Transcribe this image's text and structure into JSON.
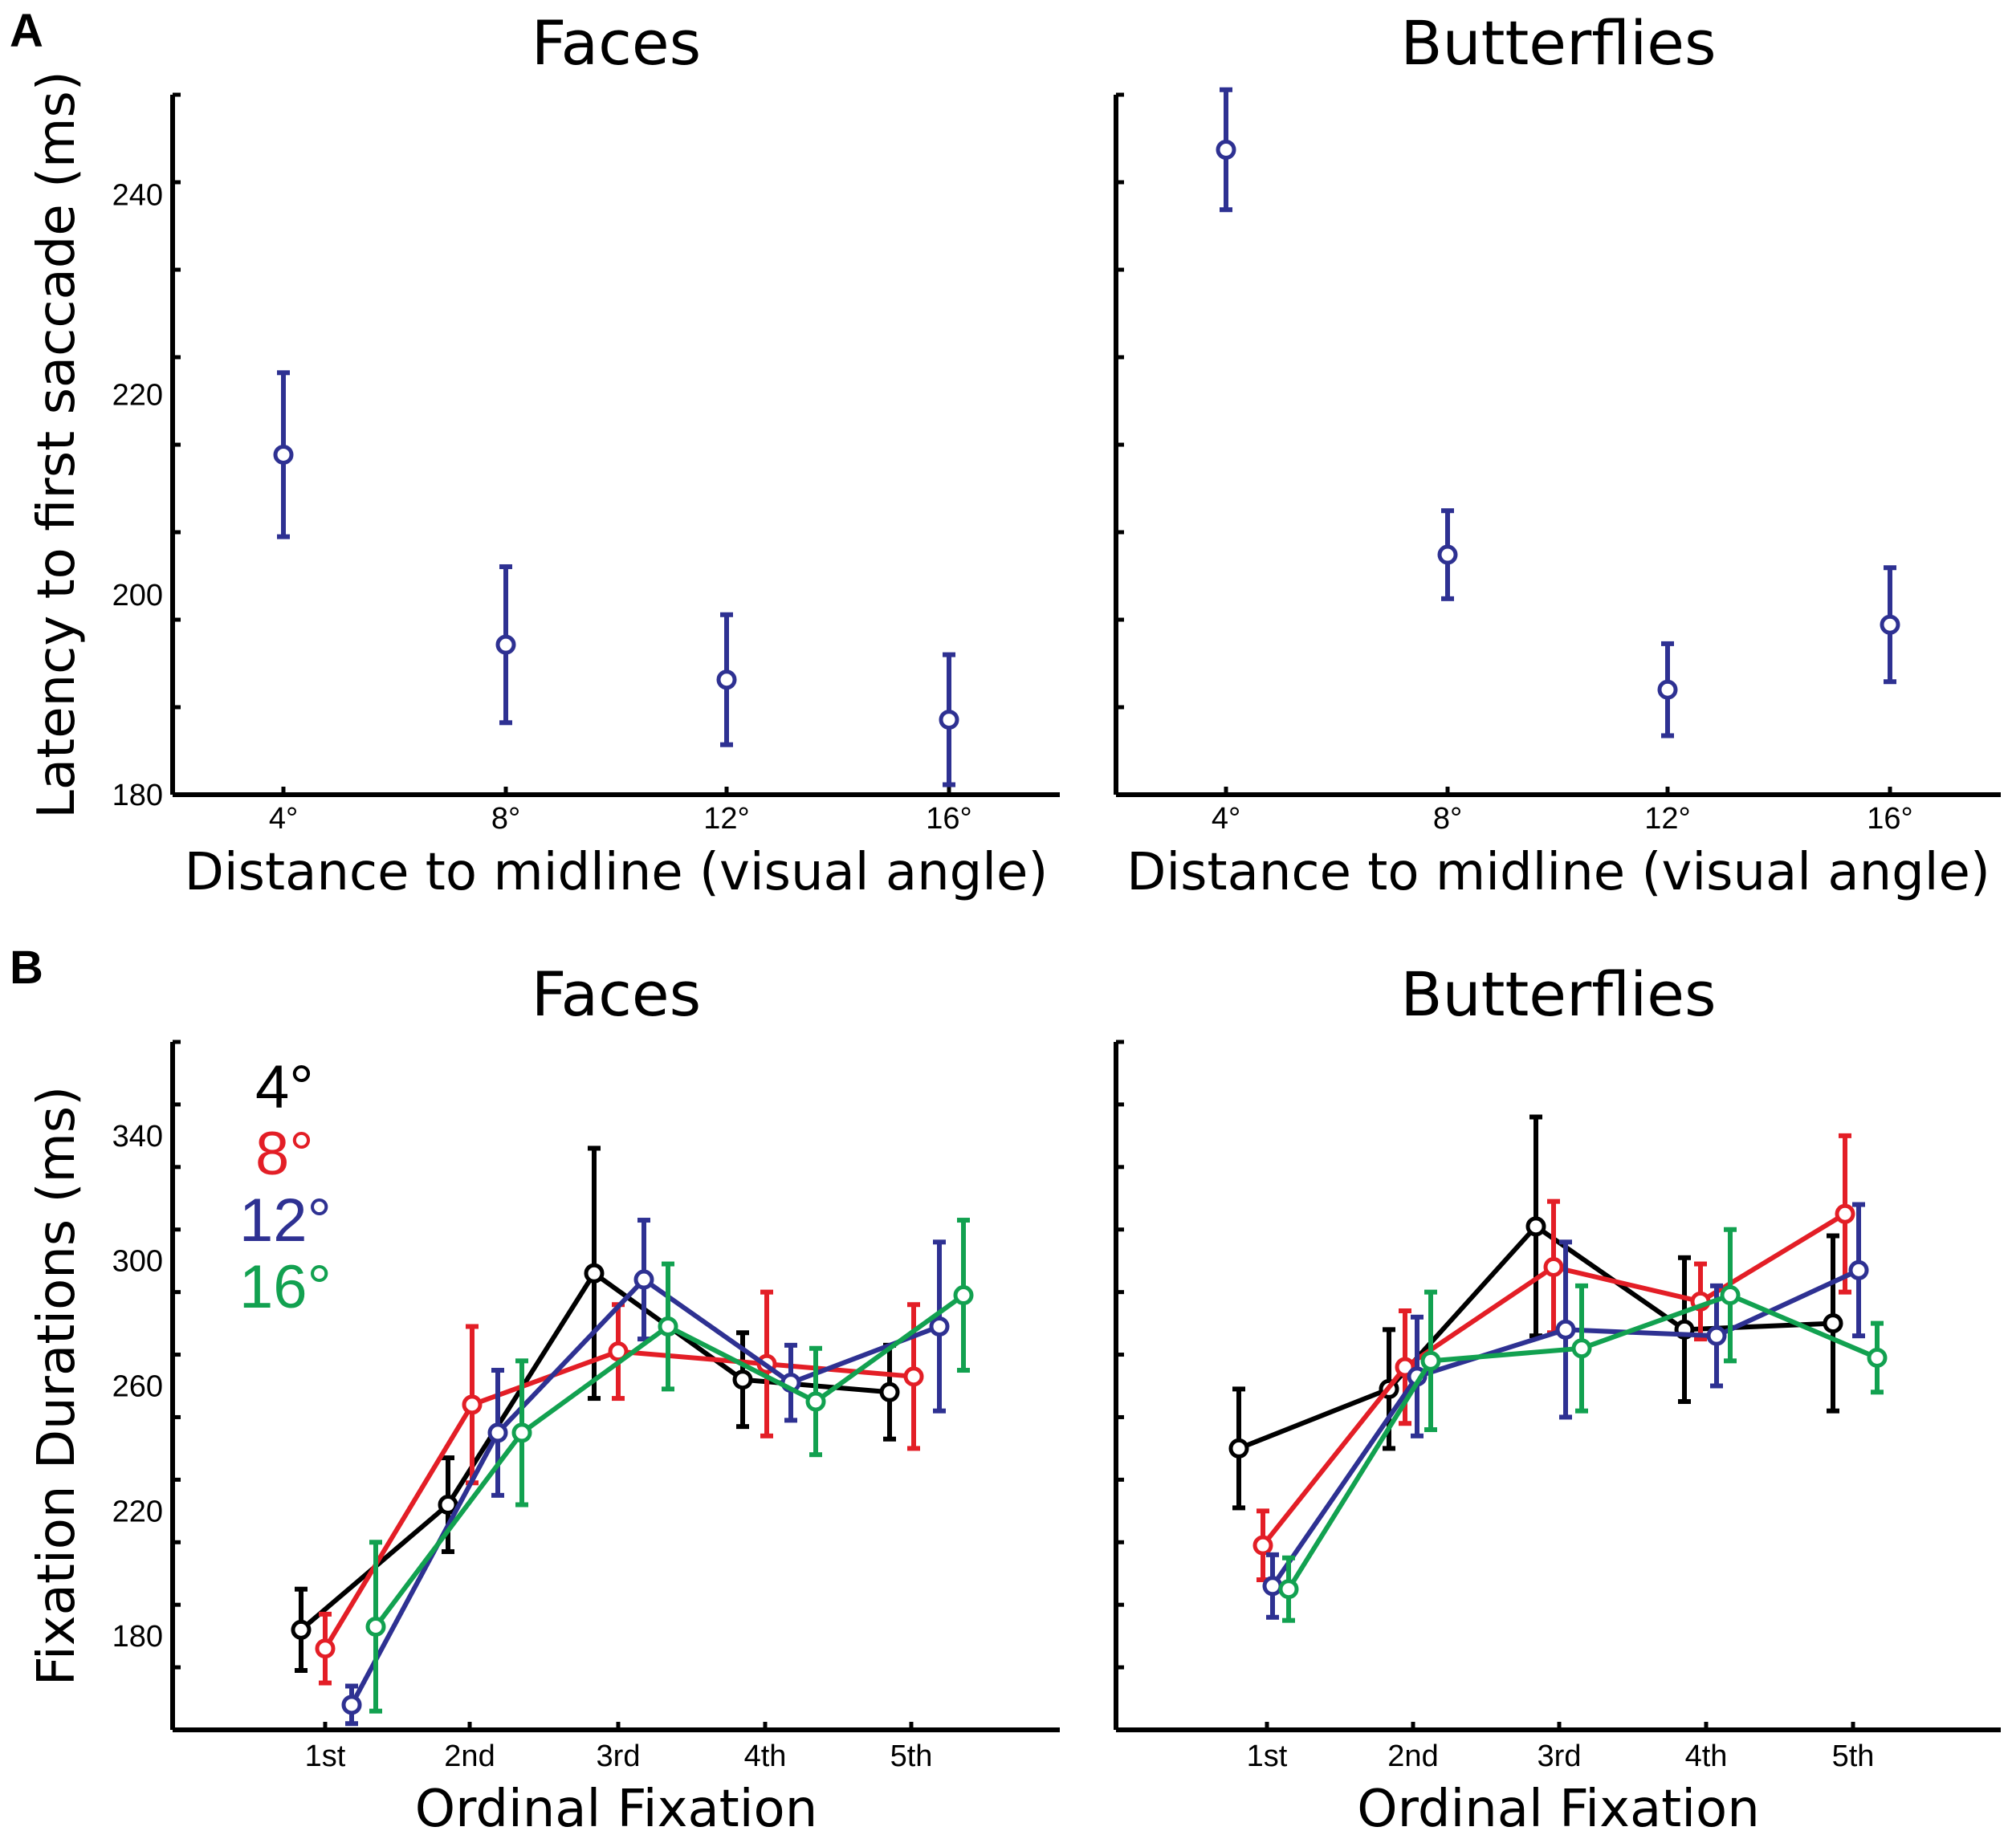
{
  "panel_labels": [
    "A",
    "B"
  ],
  "legend": [
    {
      "label": "4°",
      "color": "#000000"
    },
    {
      "label": "8°",
      "color": "#e31e26"
    },
    {
      "label": "12°",
      "color": "#2e3192"
    },
    {
      "label": "16°",
      "color": "#12a150"
    }
  ],
  "chart_data": [
    {
      "type": "scatter",
      "panel": "A",
      "title": "Faces",
      "xlabel": "Distance to midline (visual angle)",
      "ylabel": "Latency to first saccade (ms)",
      "categories": [
        "4°",
        "8°",
        "12°",
        "16°"
      ],
      "ylim": [
        180,
        250
      ],
      "yticks": [
        180,
        200,
        220,
        240
      ],
      "series": [
        {
          "name": "latency",
          "color": "#2e3192",
          "values": [
            214,
            195,
            191.5,
            187.5
          ],
          "err": [
            8.2,
            7.8,
            6.5,
            6.5
          ]
        }
      ]
    },
    {
      "type": "scatter",
      "panel": "A",
      "title": "Butterflies",
      "xlabel": "Distance to midline (visual angle)",
      "ylabel": "",
      "categories": [
        "4°",
        "8°",
        "12°",
        "16°"
      ],
      "ylim": [
        180,
        250
      ],
      "yticks": [],
      "series": [
        {
          "name": "latency",
          "color": "#2e3192",
          "values": [
            244.5,
            204,
            190.5,
            197
          ],
          "err": [
            6.0,
            4.4,
            4.6,
            5.7
          ]
        }
      ]
    },
    {
      "type": "line",
      "panel": "B",
      "title": "Faces",
      "xlabel": "Ordinal Fixation",
      "ylabel": "Fixation Durations (ms)",
      "categories": [
        "1st",
        "2nd",
        "3rd",
        "4th",
        "5th"
      ],
      "ylim": [
        150,
        370
      ],
      "yticks": [
        180,
        220,
        260,
        300,
        340
      ],
      "series": [
        {
          "name": "4°",
          "color": "#000000",
          "values": [
            182,
            222,
            296,
            262,
            258
          ],
          "err": [
            13,
            15,
            40,
            15,
            15
          ]
        },
        {
          "name": "8°",
          "color": "#e31e26",
          "values": [
            176,
            254,
            271,
            267,
            263
          ],
          "err": [
            11,
            25,
            15,
            23,
            23
          ]
        },
        {
          "name": "12°",
          "color": "#2e3192",
          "values": [
            158,
            245,
            294,
            261,
            279
          ],
          "err": [
            6,
            20,
            19,
            12,
            27
          ]
        },
        {
          "name": "16°",
          "color": "#12a150",
          "values": [
            183,
            245,
            279,
            255,
            289
          ],
          "err": [
            27,
            23,
            20,
            17,
            24
          ]
        }
      ]
    },
    {
      "type": "line",
      "panel": "B",
      "title": "Butterflies",
      "xlabel": "Ordinal Fixation",
      "ylabel": "",
      "categories": [
        "1st",
        "2nd",
        "3rd",
        "4th",
        "5th"
      ],
      "ylim": [
        150,
        370
      ],
      "yticks": [],
      "series": [
        {
          "name": "4°",
          "color": "#000000",
          "values": [
            240,
            259,
            311,
            278,
            280
          ],
          "err": [
            19,
            19,
            35,
            23,
            28
          ]
        },
        {
          "name": "8°",
          "color": "#e31e26",
          "values": [
            209,
            266,
            298,
            287,
            315
          ],
          "err": [
            11,
            18,
            21,
            12,
            25
          ]
        },
        {
          "name": "12°",
          "color": "#2e3192",
          "values": [
            196,
            263,
            278,
            276,
            297
          ],
          "err": [
            10,
            19,
            28,
            16,
            21
          ]
        },
        {
          "name": "16°",
          "color": "#12a150",
          "values": [
            195,
            268,
            272,
            289,
            269
          ],
          "err": [
            10,
            22,
            20,
            21,
            11
          ]
        }
      ]
    }
  ]
}
